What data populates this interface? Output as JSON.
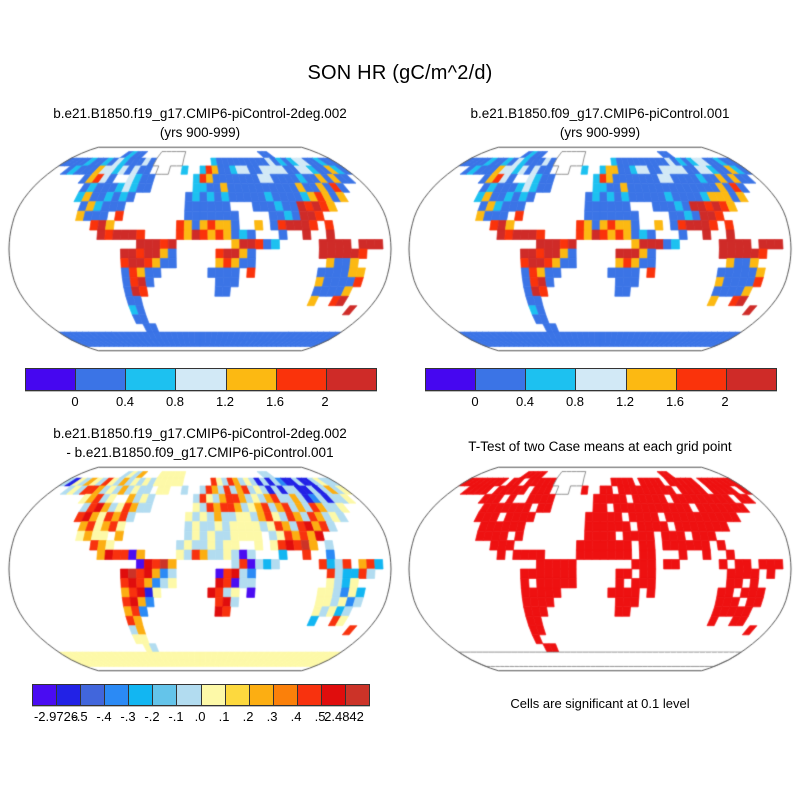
{
  "figure_title": "SON HR (gC/m^2/d)",
  "chart_data": [
    {
      "id": "case1",
      "type": "heatmap",
      "projection": "robinson",
      "title_lines": [
        "b.e21.B1850.f19_g17.CMIP6-piControl-2deg.002",
        "(yrs 900-999)"
      ],
      "colorbar": {
        "labels": [
          "0",
          "0.4",
          "0.8",
          "1.2",
          "1.6",
          "2"
        ],
        "colors": [
          "#4606f0",
          "#3b74e6",
          "#1dc1f0",
          "#d2e9f6",
          "#fcb912",
          "#fa330b",
          "#cf2b28"
        ]
      },
      "palette": {
        "b": "#3b74e6",
        "c": "#1dc1f0",
        "l": "#d2e9f6",
        "y": "#fcb912",
        "o": "#fa330b",
        "r": "#cf2b28",
        "v": "#4606f0",
        "w": "outline"
      },
      "grid": [
        "................................................",
        ".........bcbb...wwwww...............bb..........",
        "bbbbcbbcblcbbblbwwwww.....cbbbbbbbbblbcbcllbbcbb",
        "..bcbbbyllclblbb.ww..c..coybbcllbbllllbbllcbbycb",
        "......byolb..lcbb......coybbbbbbbllbbbbcbbybybb.",
        ".......bcbbbclcbb......ccbbybbbbbbbbbbybbybob...",
        ".......cybbcbcb.......bcbcbcbbbbbcbbbbcyoyby....",
        "........bycbbb........bbbbbb...bbbcbbroroy......",
        "........ybbb.o........bbbbbbb....bbcbrro........",
        "..........ory........oybyoyyb..y.borrro.o.......",
        "...........rorrro....oyroyoybcb...b..r..r.......",
        "................rrror.......yrrobc.....rrrr.rrr....",
        "..............rrorryb.....orryb........rrrrro....",
        "..............orroybb.....yoybb.........ybby....",
        "..............boybb......bbbb.o........bbbbyy...",
        "..............borb........bbb..........ybbbbo...",
        "..............bro.........bb...........bbbby....",
        "..............bb.......................y..or",
        "..............cb.............................r.",
        "..............bb...............................",
        "...............bb..............................",
        "bbbbbbbbbbbbbbbbbbbbbbbbbbbbbbbbbbbbbbbbbbbbbbbb",
        "bbbbbbbbbbbbbbbbbbbbbbbbbbbbbbbbbbbbbbbbbbbbbbbb",
        "................................................"
      ]
    },
    {
      "id": "case2",
      "type": "heatmap",
      "projection": "robinson",
      "title_lines": [
        "b.e21.B1850.f09_g17.CMIP6-piControl.001",
        "(yrs 900-999)"
      ],
      "colorbar": {
        "labels": [
          "0",
          "0.4",
          "0.8",
          "1.2",
          "1.6",
          "2"
        ],
        "colors": [
          "#4606f0",
          "#3b74e6",
          "#1dc1f0",
          "#d2e9f6",
          "#fcb912",
          "#fa330b",
          "#cf2b28"
        ]
      },
      "palette": {
        "b": "#3b74e6",
        "c": "#1dc1f0",
        "l": "#d2e9f6",
        "y": "#fcb912",
        "o": "#fa330b",
        "r": "#cf2b28",
        "v": "#4606f0",
        "w": "outline"
      },
      "grid": [
        "................................................",
        ".........bcbb...wwwww...............bb..........",
        "bbbbcbbcblcbbblbwwwww.....cbbbbbbbbblbcbcllbbcbb",
        "..bcbbbyllclblbb.ww..c..cyybbcllbbllllbbllcbbycb",
        "......byolb..lcbb......coybbbbbbbllbbbbcbbybybb.",
        ".......bcbbbclcbb......ccbbybbbbbbbbbbbbbybob...",
        ".......cybbcbcb.......bcbcbcbbbbbcbbbbcyyyby....",
        "........bycbbb........bbbbbb...bbbcbrroroy......",
        "........ybbb.o........bbbbbbb....bbcbrro........",
        "..........ory........oybyoyyb..y.borrro.o.......",
        "...........rorrro....oyroyoybcb...b..r..r.......",
        "................rrror.......yrrrbc.....rrrr.rrr....",
        "..............rrorryb.....rrryb........rrrrro....",
        "..............orroybb.....yoybb.........ybby....",
        "..............boybb......bbbb.o........bbbbby...",
        "..............borb........bbb..........ybbbbo...",
        "..............bro.........bb...........bbbby....",
        "..............bb.......................y..or",
        "..............cb.............................r.",
        "..............bb...............................",
        "...............bb..............................",
        "bbbbbbbbbbbbbbbbbbbbbbbbbbbbbbbbbbbbbbbbbbbbbbbb",
        "bbbbbbbbbbbbbbbbbbbbbbbbbbbbbbbbbbbbbbbbbbbbbbbb",
        "................................................"
      ]
    },
    {
      "id": "difference",
      "type": "heatmap",
      "projection": "robinson",
      "title_lines": [
        "b.e21.B1850.f19_g17.CMIP6-piControl-2deg.002",
        "- b.e21.B1850.f09_g17.CMIP6-piControl.001"
      ],
      "colorbar": {
        "labels": [
          "-2.9726",
          "-.5",
          "-.4",
          "-.3",
          "-.2",
          "-.1",
          ".0",
          ".1",
          ".2",
          ".3",
          ".4",
          ".5",
          "2.4842"
        ],
        "colors": [
          "#4a0cf2",
          "#2222e6",
          "#4166dc",
          "#2b8af5",
          "#12b6f2",
          "#64c4ea",
          "#b2dcf0",
          "#fdf9a8",
          "#fdd93e",
          "#fcae12",
          "#fb800a",
          "#f8320e",
          "#e00d0d",
          "#cc3328"
        ]
      },
      "palette": {
        "V": "#4a0cf2",
        "B": "#2222e6",
        "u": "#4166dc",
        "U": "#2b8af5",
        "C": "#12b6f2",
        "t": "#64c4ea",
        "p": "#b2dcf0",
        "Y": "#fdf9a8",
        "y": "#fdd93e",
        "a": "#fcae12",
        "O": "#fb800a",
        "o": "#f8320e",
        "R": "#e00d0d",
        "k": "#cc3328"
      },
      "grid": [
        "................................................",
        ".........pYpa...YYYYY...............pp..........",
        "pBYpaYpoYpapYpYpYYYYY.....oYpoapYpBpBpUBBpBBpYpp",
        "..pYpooapYpapYpp.YY..p..poapopaopYpBpBppBBpBpapY",
        "......YaopY..apYp......poYpaooapYpaoppapBUpBppY.",
        ".......poRapYoapp......YpoaooapYaopaopapoappY...",
        ".......oRaYoaop.......YpYpappYYpaoYpoapoapYp....",
        "........aoYaoY........pYppYpYYYYpYoapoRaop......",
        "........YaYY.a........pYpYppYYYY.pYoaoaR........",
        "..........oaY........pYppYpYY..Y.YoRoka.p.......",
        "...........aRooVa....YpoappYpVp...C..o..U.......",
        "................VRoka.......poVpCp.....oCpo.aoC....",
        "..............RkoRaUp.....VoRpU.........opCCop....",
        "..............oRoaUpY.....RoVpp.........YpCY....",
        "..............aoRBY......RopY.V........YYpUYC...",
        "..............oRaU........oRp..........YYpYUp...",
        "..............aoU.........Ro...........YpYCp....",
        "..............oa.......................C..oY",
        "..............pa.............................o.",
        "..............YY...............................",
        "...............Yp..............................",
        "YYYYYYYYYYYYYYYYYYYYYYYYYYYYYYYYYYYYYYYYYYYYYYYY",
        "YYYYYYYYYYYYYYYYYYYYYYYYYYYYYYYYYYYYYYYYYYYYYYYY",
        "................................................"
      ]
    },
    {
      "id": "ttest",
      "type": "heatmap",
      "projection": "robinson",
      "title_lines": [
        "T-Test of two Case means at each grid point"
      ],
      "caption": "Cells are significant at 0.1 level",
      "palette": {
        "r": "#ee1111",
        "w": "outline"
      },
      "grid": [
        "................................................",
        ".........rrrr...wwwww...............rr..........",
        "rrrrrrr.rr.rrrrrwwwww.....rrrr.rrrr.rrrrr.rrrrrr",
        "..rrrr.rrrrr.rrr.ww..r..rr.rrrrrrrrr.rrrr.rrrr.r",
        "......rrr.r..rrrr......rrrrr.rrrrr.rrrrrrrrr.rr.",
        ".......rrrrrrr.rr......rr.rrrrrrrrrrr.rrrrrrr...",
        ".......rrr.rrrr.......rrrrr.rrrr.rrrrrrrrrr.....",
        "........rrrrrr........rrrrrr.rrrr.rrrrrrr.......",
        "........rrrr.r........rrrr.rrrr.rrr.rrr.........",
        "..........rrr........rrrrrrr.rr.rrrrrr.r........",
        "...........r.rrrr....rrrrrrr.rr...r..r..r.......",
        "................rrrrr.......rrr.rr.....r.rr.rrr....",
        "..............rrrrrrr.....rr.rr.........rrrr.r....",
        "..............r.rrrrr.....r.rrr.........rr.r....",
        "..............rrrrr......rrrr.r........rr.rrr...",
        "..............rrrr........rrr..........rrr.rr...",
        "..............rrr.........rr...........rrrrr....",
        "..............rr.......................r..rr",
        "..............rr.............................r.",
        "..............r................................",
        "...............rr..............................",
        "wwwwwwwwwwwwwwwwwwwwwwwwwwwwwwwwwwwwwwwwwwwwwwww",
        "wwwwwwwwwwwwwwwwwwwwwwwwwwwwwwwwwwwwwwwwwwwwwwww",
        "................................................"
      ]
    }
  ]
}
